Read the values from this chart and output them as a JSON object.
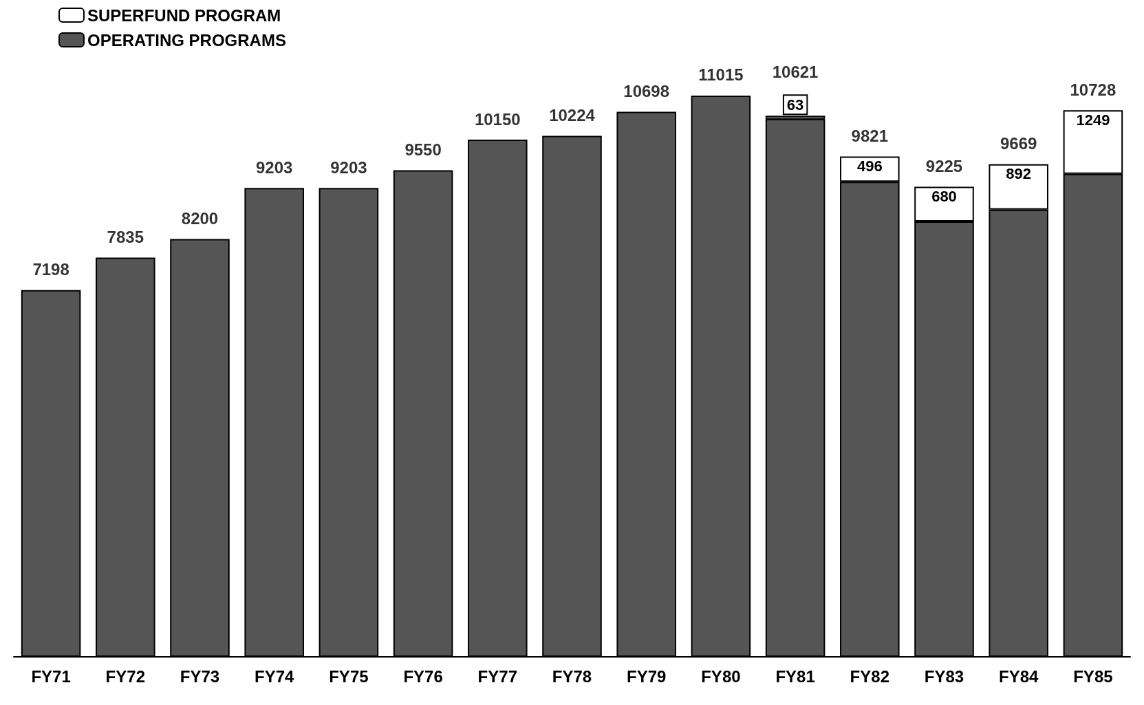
{
  "chart_data": {
    "type": "bar",
    "stacked": true,
    "legend": "top left",
    "categories": [
      "FY71",
      "FY72",
      "FY73",
      "FY74",
      "FY75",
      "FY76",
      "FY77",
      "FY78",
      "FY79",
      "FY80",
      "FY81",
      "FY82",
      "FY83",
      "FY84",
      "FY85"
    ],
    "series": [
      {
        "name": "OPERATING PROGRAMS",
        "color": "#555555",
        "values": [
          7198,
          7835,
          8200,
          9203,
          9203,
          9550,
          10150,
          10224,
          10698,
          11015,
          10558,
          9325,
          8545,
          8777,
          9479
        ]
      },
      {
        "name": "SUPERFUND PROGRAM",
        "color": "#ffffff",
        "values": [
          null,
          null,
          null,
          null,
          null,
          null,
          null,
          null,
          null,
          null,
          63,
          496,
          680,
          892,
          1249
        ],
        "value_labels": [
          null,
          null,
          null,
          null,
          null,
          null,
          null,
          null,
          null,
          null,
          "63",
          "496",
          "680",
          "892",
          "1249"
        ]
      }
    ],
    "totals": [
      "7198",
      "7835",
      "8200",
      "9203",
      "9203",
      "9550",
      "10150",
      "10224",
      "10698",
      "11015",
      "10621",
      "9821",
      "9225",
      "9669",
      "10728"
    ]
  }
}
